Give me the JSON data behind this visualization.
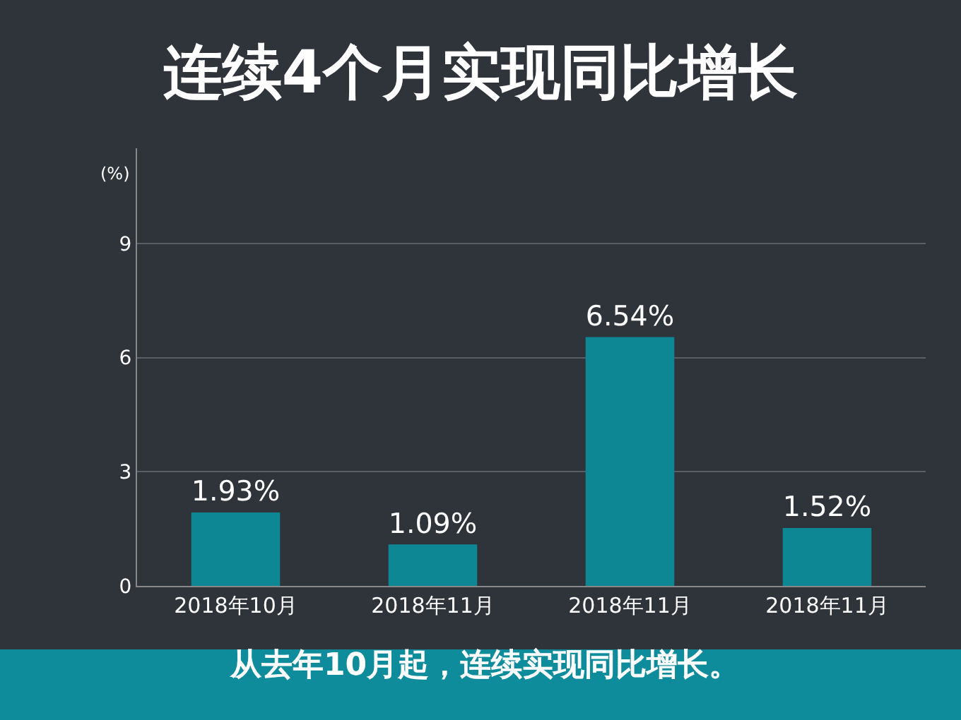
{
  "chart_data": {
    "type": "bar",
    "title": "连续4个月实现同比增长",
    "ylabel": "(%)",
    "categories": [
      "2018年10月",
      "2018年11月",
      "2018年11月",
      "2018年11月"
    ],
    "values": [
      1.93,
      1.09,
      6.54,
      1.52
    ],
    "value_labels": [
      "1.93%",
      "1.09%",
      "6.54%",
      "1.52%"
    ],
    "color": "#0e8795",
    "ylim": [
      0,
      11.5
    ],
    "yticks": [
      0,
      3,
      6,
      9
    ],
    "grid": "y",
    "annotations": [
      "从去年10月起，连续实现同比增长。"
    ]
  }
}
